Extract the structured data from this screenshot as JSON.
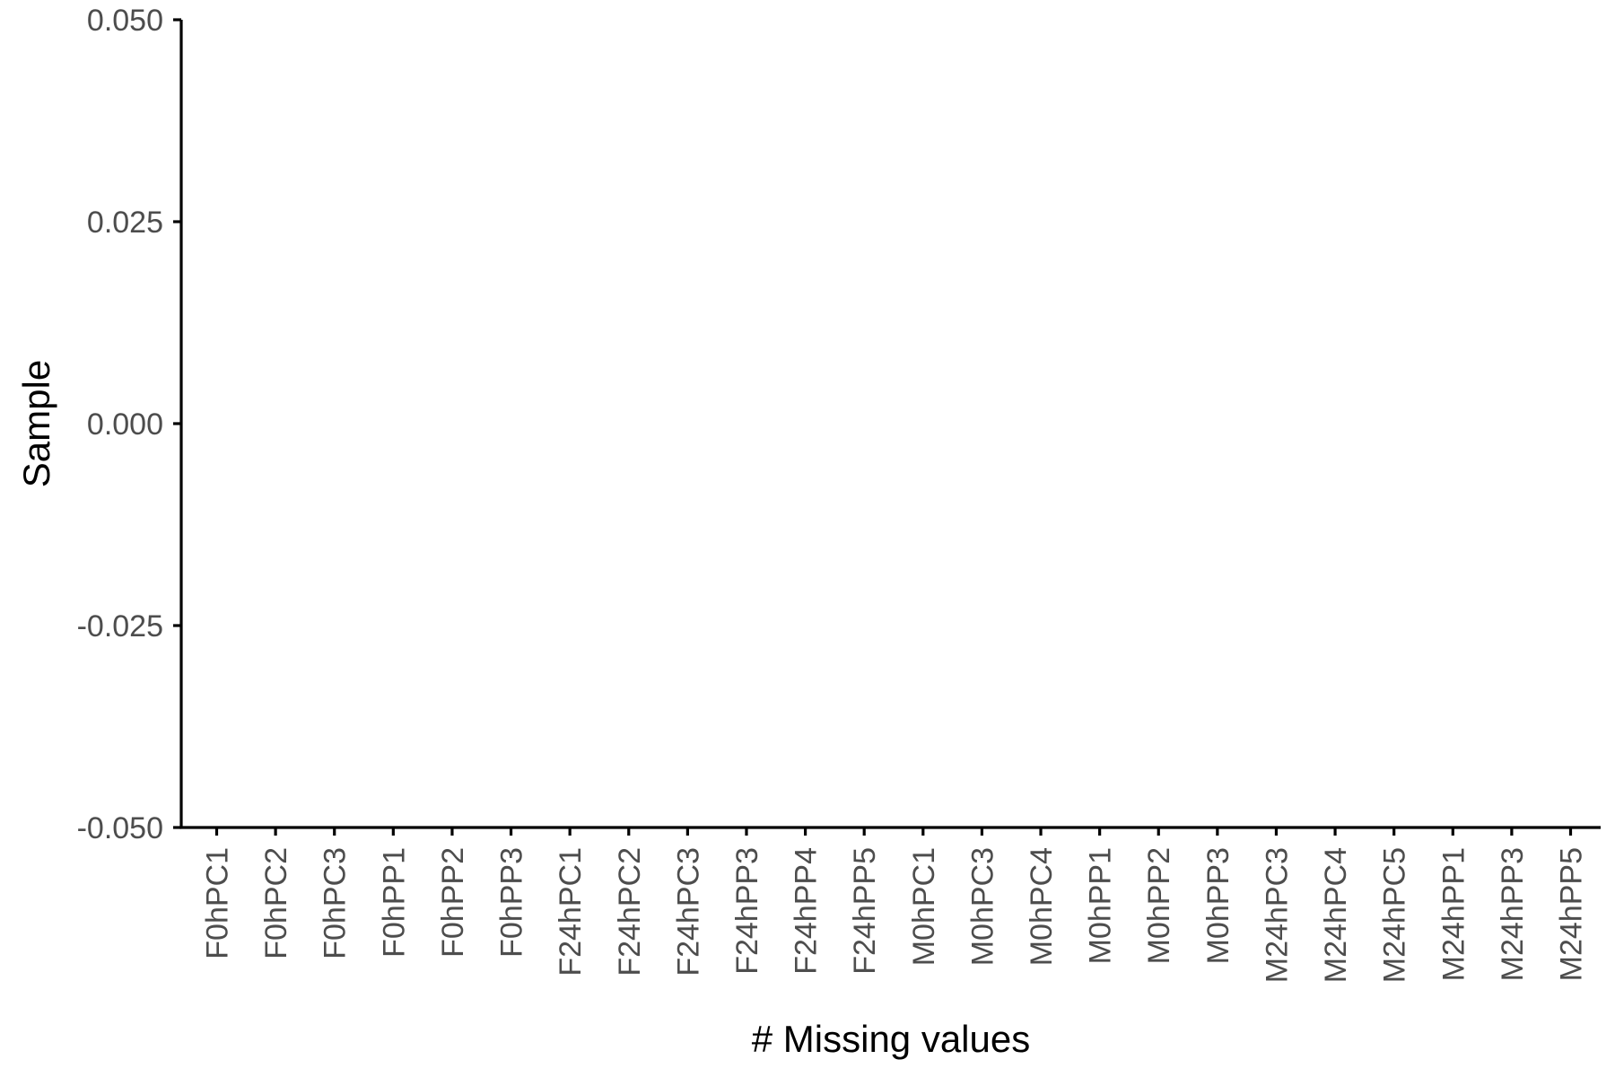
{
  "chart_data": {
    "type": "bar",
    "title": "",
    "xlabel": "# Missing values",
    "ylabel": "Sample",
    "categories": [
      "F0hPC1",
      "F0hPC2",
      "F0hPC3",
      "F0hPP1",
      "F0hPP2",
      "F0hPP3",
      "F24hPC1",
      "F24hPC2",
      "F24hPC3",
      "F24hPP3",
      "F24hPP4",
      "F24hPP5",
      "M0hPC1",
      "M0hPC3",
      "M0hPC4",
      "M0hPP1",
      "M0hPP2",
      "M0hPP3",
      "M24hPC3",
      "M24hPC4",
      "M24hPC5",
      "M24hPP1",
      "M24hPP3",
      "M24hPP5"
    ],
    "values": [
      0,
      0,
      0,
      0,
      0,
      0,
      0,
      0,
      0,
      0,
      0,
      0,
      0,
      0,
      0,
      0,
      0,
      0,
      0,
      0,
      0,
      0,
      0,
      0
    ],
    "ylim": [
      -0.05,
      0.05
    ],
    "y_ticks": [
      -0.05,
      -0.025,
      0,
      0.025,
      0.05
    ],
    "y_tick_labels": [
      "-0.050",
      "-0.025",
      "0.000",
      "0.025",
      "0.050"
    ],
    "grid": false,
    "legend": "none",
    "colors": {
      "axis": "#000000",
      "tick_label": "#4d4d4d",
      "title": "#000000",
      "background": "#ffffff"
    }
  }
}
